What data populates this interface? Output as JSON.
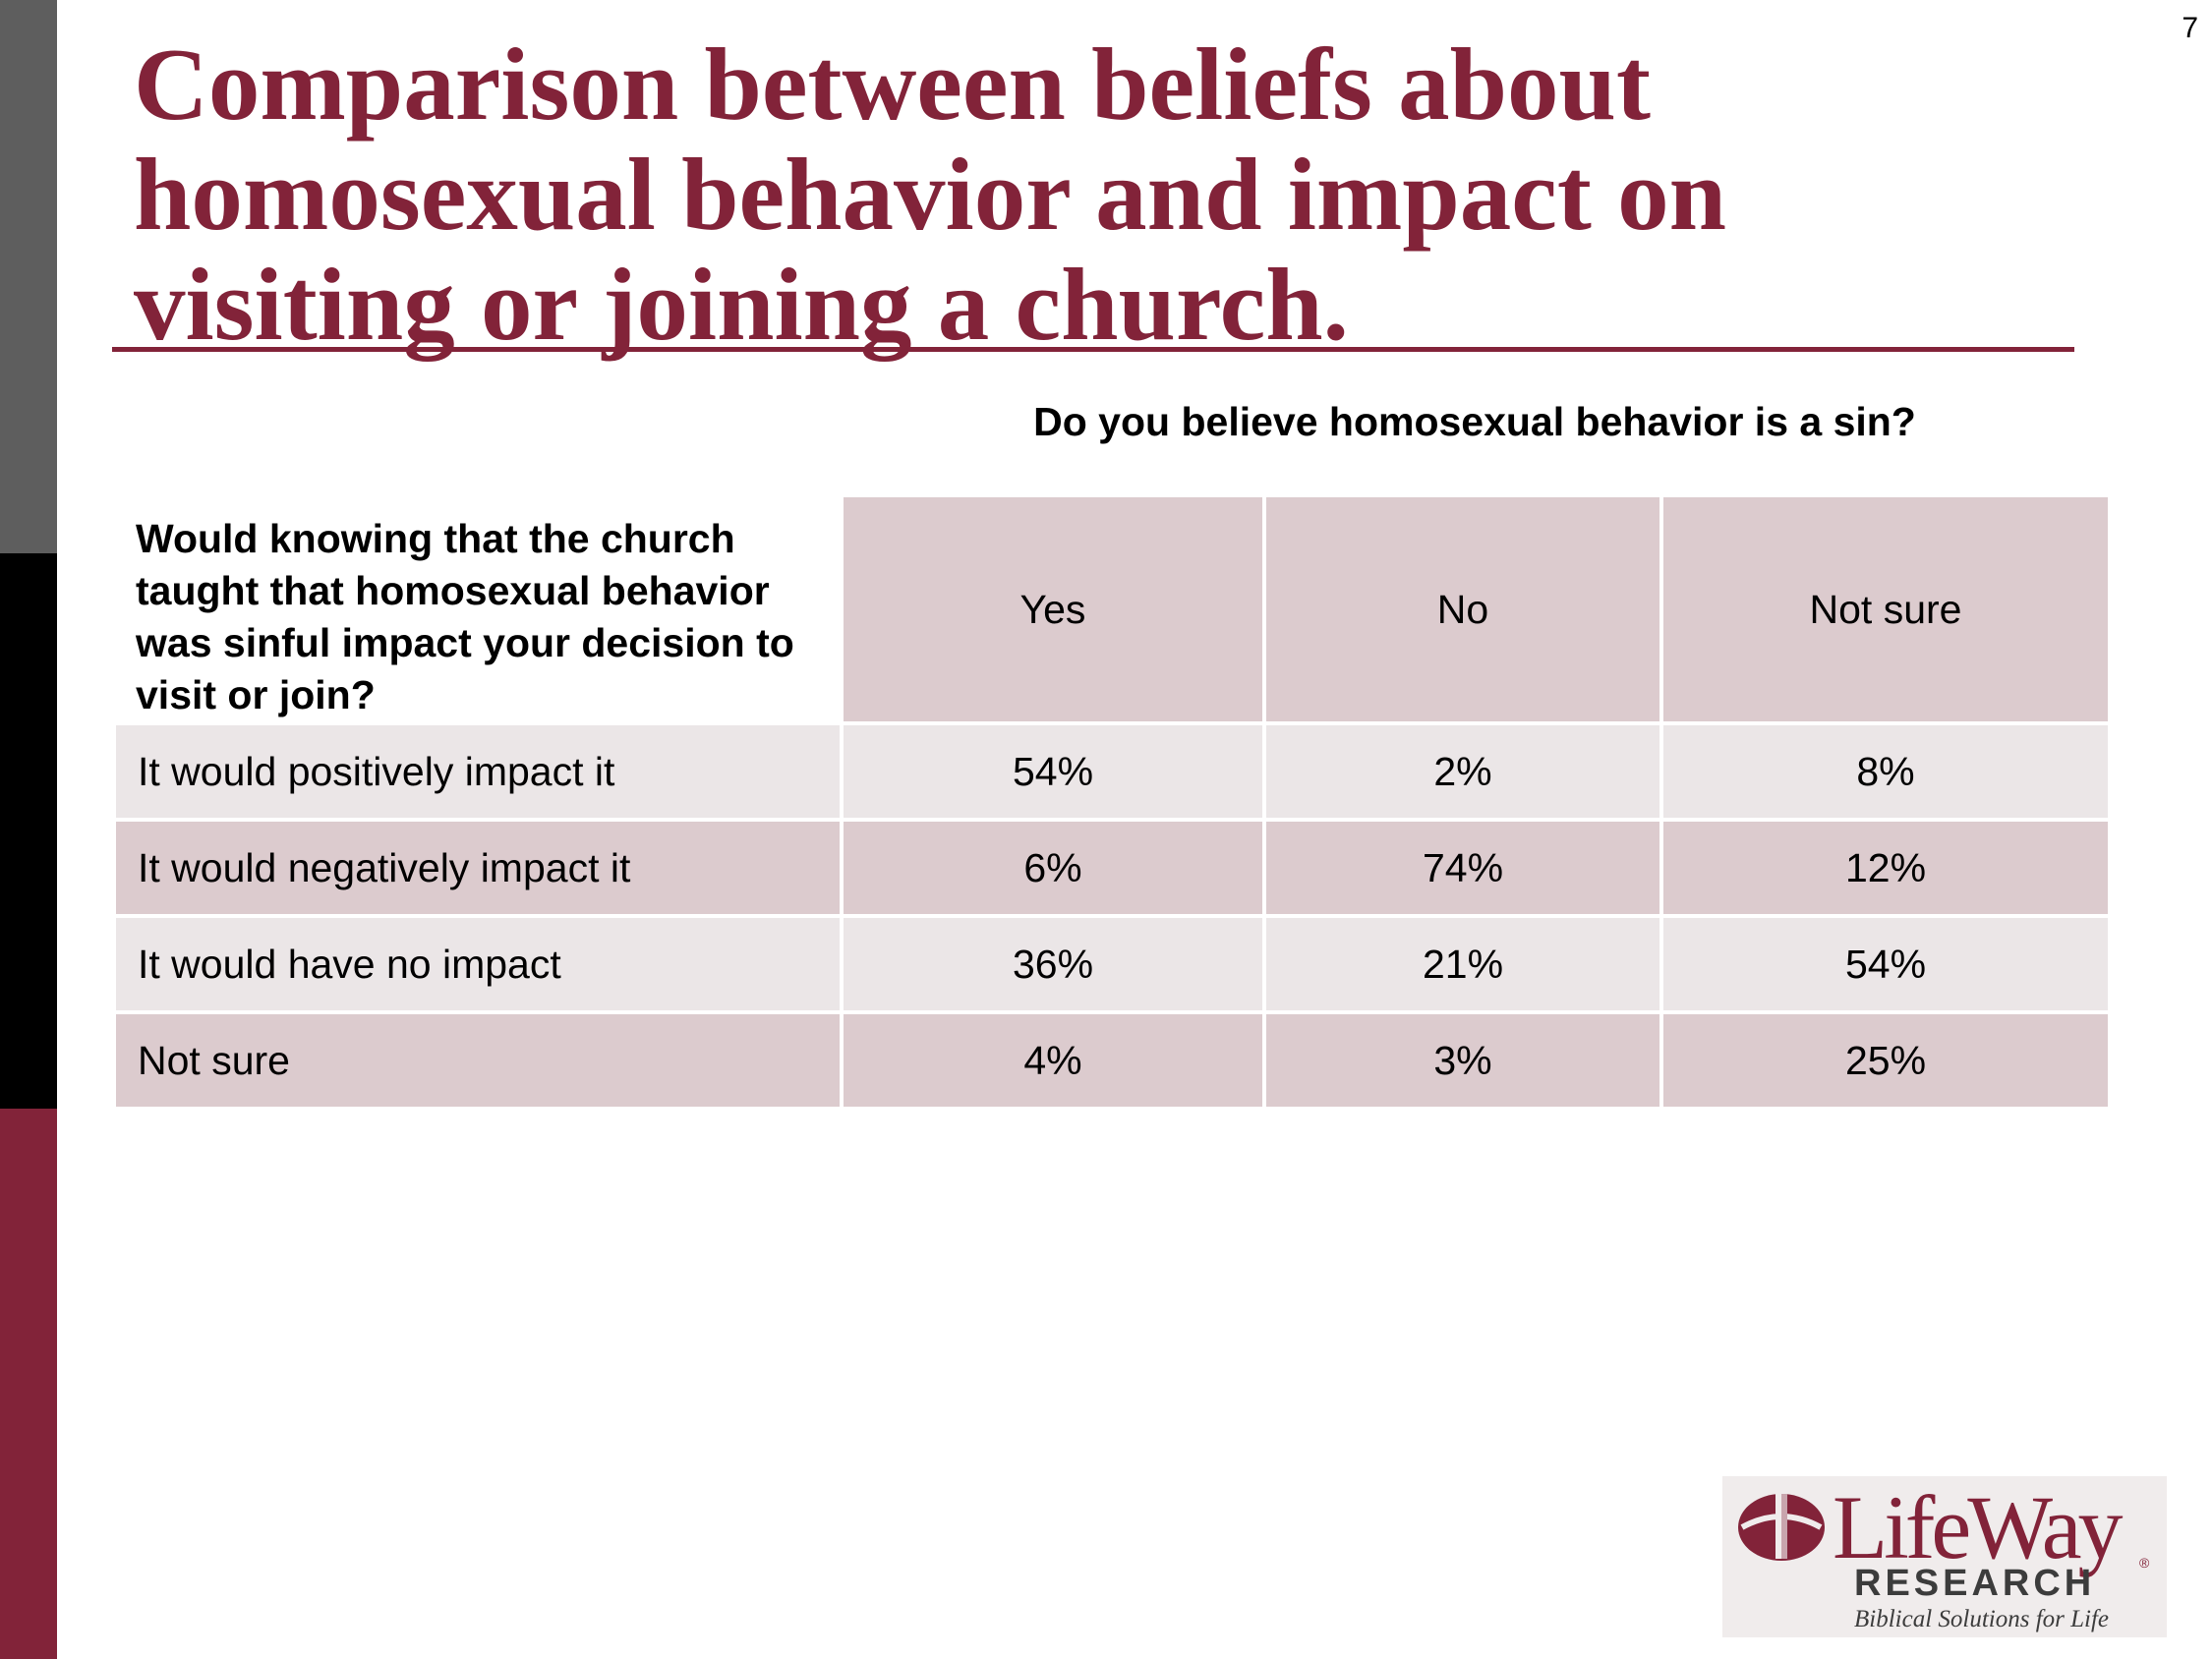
{
  "page_number": "7",
  "title": "Comparison between beliefs about homosexual behavior and impact on visiting or joining a church.",
  "column_question": "Do you believe homosexual behavior is a sin?",
  "row_question": "Would knowing that the church taught that homosexual behavior was sinful impact your decision to visit or join?",
  "columns": [
    "Yes",
    "No",
    "Not sure"
  ],
  "rows": [
    {
      "label": "It would positively impact it",
      "values": [
        "54%",
        "2%",
        "8%"
      ]
    },
    {
      "label": "It would negatively impact it",
      "values": [
        "6%",
        "74%",
        "12%"
      ]
    },
    {
      "label": "It would have no impact",
      "values": [
        "36%",
        "21%",
        "54%"
      ]
    },
    {
      "label": "Not sure",
      "values": [
        "4%",
        "3%",
        "25%"
      ]
    }
  ],
  "logo": {
    "name": "LifeWay",
    "registered": "®",
    "subtitle": "RESEARCH",
    "tagline": "Biblical Solutions for Life"
  },
  "colors": {
    "brand": "#822339",
    "header_fill": "#dccbce",
    "light_row_fill": "#ebe6e7",
    "side_gray": "#5e5e5e",
    "side_black": "#000000"
  }
}
